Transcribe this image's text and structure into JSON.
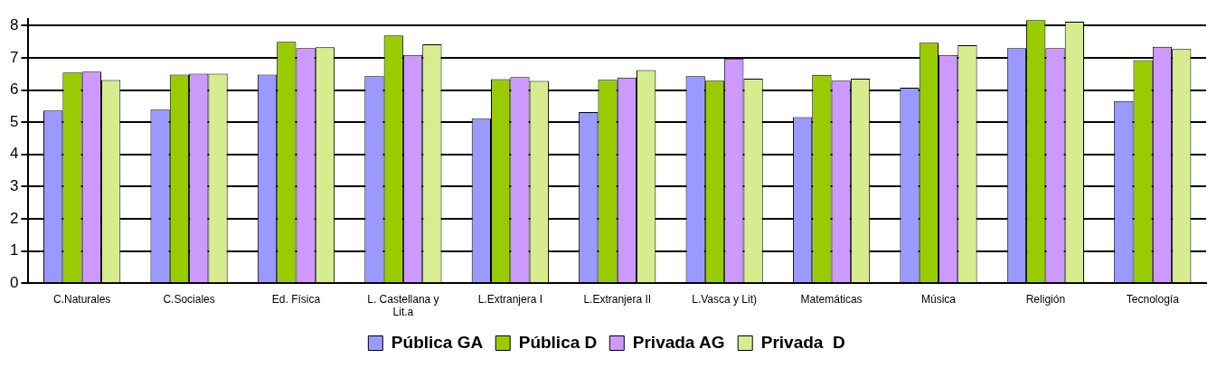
{
  "chart_data": {
    "type": "bar",
    "categories": [
      "C.Naturales",
      "C.Sociales",
      "Ed. Física",
      "L. Castellana y Lit.a",
      "L.Extranjera I",
      "L.Extranjera II",
      "L.Vasca y Lit)",
      "Matemáticas",
      "Música",
      "Religión",
      "Tecnología"
    ],
    "series": [
      {
        "name": "Pública GA",
        "color": "#9999ff",
        "values": [
          5.36,
          5.39,
          6.48,
          6.43,
          5.11,
          5.31,
          6.43,
          5.16,
          6.07,
          7.3,
          5.66
        ]
      },
      {
        "name": "Pública D",
        "color": "#99cc00",
        "values": [
          6.54,
          6.48,
          7.5,
          7.69,
          6.34,
          6.32,
          6.29,
          6.47,
          7.47,
          8.17,
          6.93
        ]
      },
      {
        "name": "Privada AG",
        "color": "#cc99ff",
        "values": [
          6.57,
          6.51,
          7.3,
          7.09,
          6.4,
          6.39,
          6.98,
          6.29,
          7.09,
          7.3,
          7.34
        ]
      },
      {
        "name": "Privada  D",
        "color": "#d6ec8f",
        "values": [
          6.31,
          6.51,
          7.33,
          7.42,
          6.28,
          6.62,
          6.35,
          6.35,
          7.39,
          8.12,
          7.27
        ]
      }
    ],
    "ylim": [
      0,
      8.2
    ],
    "yticks": [
      0,
      1,
      2,
      3,
      4,
      5,
      6,
      7,
      8
    ],
    "grid": "y",
    "legend": "bottom"
  }
}
